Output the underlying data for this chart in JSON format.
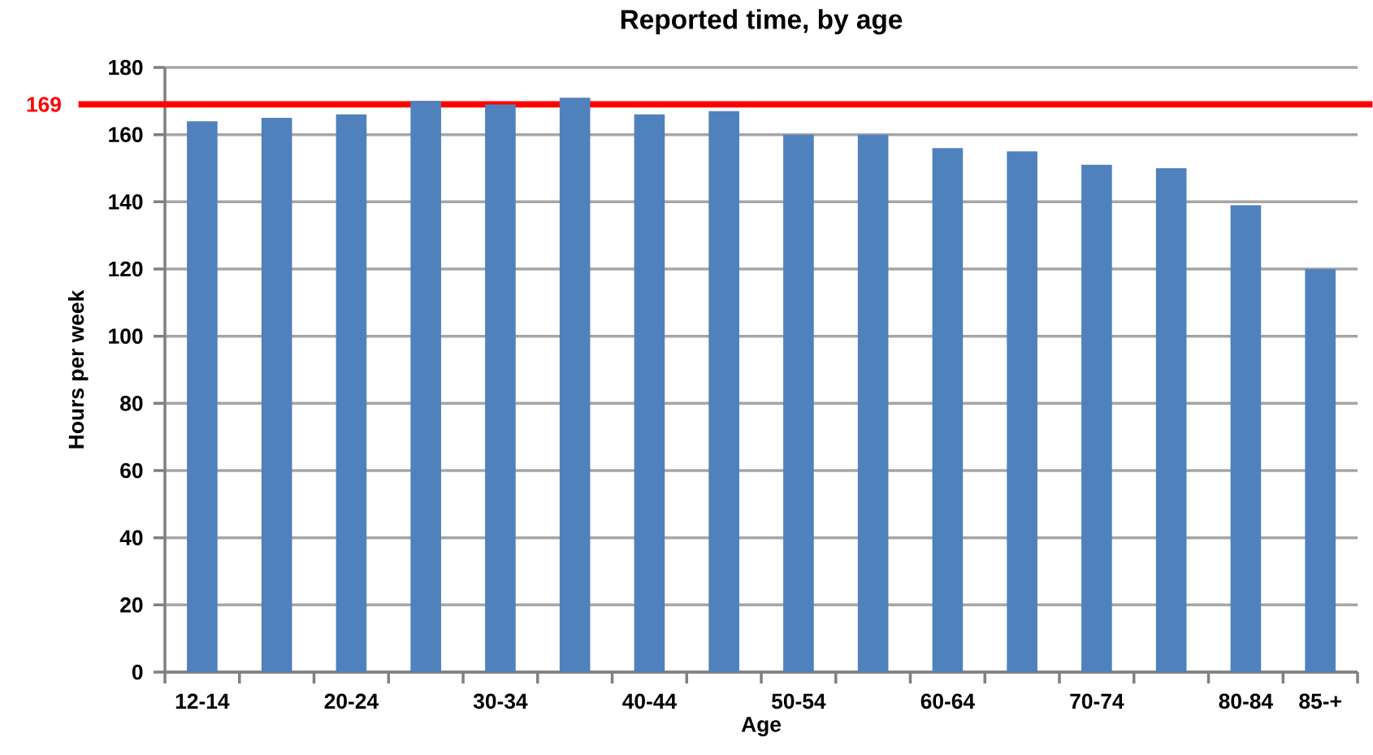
{
  "chart_data": {
    "type": "bar",
    "title": "Reported time, by age",
    "xlabel": "Age",
    "ylabel": "Hours per week",
    "categories": [
      "12-14",
      null,
      "20-24",
      null,
      "30-34",
      null,
      "40-44",
      null,
      "50-54",
      null,
      "60-64",
      null,
      "70-74",
      null,
      "80-84",
      "85-+"
    ],
    "values": [
      164,
      165,
      166,
      170,
      169,
      171,
      166,
      167,
      160,
      160,
      156,
      155,
      151,
      150,
      139,
      120
    ],
    "color": "#4f81bd",
    "ylim": [
      0,
      180
    ],
    "yticks": [
      0,
      20,
      40,
      60,
      80,
      100,
      120,
      140,
      160,
      180
    ],
    "grid": "y",
    "ref_lines": [
      {
        "axis": "y",
        "value": 169,
        "label": "169",
        "color": "#ff0000"
      }
    ]
  }
}
